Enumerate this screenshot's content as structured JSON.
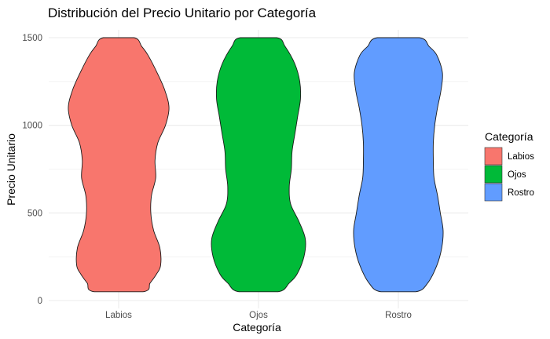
{
  "chart_data": {
    "type": "violin",
    "title": "Distribución del Precio Unitario por Categoría",
    "xlabel": "Categoría",
    "ylabel": "Precio Unitario",
    "categories": [
      "Labios",
      "Ojos",
      "Rostro"
    ],
    "ylim": [
      0,
      1500
    ],
    "yticks": [
      0,
      500,
      1000,
      1500
    ],
    "grid": true,
    "legend": {
      "title": "Categoría",
      "position": "right"
    },
    "series": [
      {
        "name": "Labios",
        "color": "#F8766D",
        "min": 50,
        "max": 1500,
        "profile": [
          [
            50,
            0.35
          ],
          [
            100,
            0.45
          ],
          [
            150,
            0.54
          ],
          [
            200,
            0.6
          ],
          [
            300,
            0.59
          ],
          [
            400,
            0.5
          ],
          [
            500,
            0.46
          ],
          [
            600,
            0.47
          ],
          [
            700,
            0.53
          ],
          [
            800,
            0.52
          ],
          [
            900,
            0.56
          ],
          [
            1000,
            0.67
          ],
          [
            1100,
            0.72
          ],
          [
            1200,
            0.66
          ],
          [
            1300,
            0.55
          ],
          [
            1400,
            0.42
          ],
          [
            1450,
            0.33
          ],
          [
            1500,
            0.22
          ]
        ]
      },
      {
        "name": "Ojos",
        "color": "#00BA38",
        "min": 50,
        "max": 1500,
        "profile": [
          [
            50,
            0.28
          ],
          [
            100,
            0.44
          ],
          [
            150,
            0.55
          ],
          [
            250,
            0.65
          ],
          [
            350,
            0.67
          ],
          [
            450,
            0.58
          ],
          [
            550,
            0.46
          ],
          [
            650,
            0.44
          ],
          [
            750,
            0.47
          ],
          [
            850,
            0.48
          ],
          [
            950,
            0.52
          ],
          [
            1050,
            0.56
          ],
          [
            1150,
            0.6
          ],
          [
            1250,
            0.59
          ],
          [
            1350,
            0.52
          ],
          [
            1450,
            0.38
          ],
          [
            1500,
            0.26
          ]
        ]
      },
      {
        "name": "Rostro",
        "color": "#619CFF",
        "min": 50,
        "max": 1500,
        "profile": [
          [
            50,
            0.25
          ],
          [
            100,
            0.42
          ],
          [
            200,
            0.55
          ],
          [
            300,
            0.62
          ],
          [
            400,
            0.64
          ],
          [
            500,
            0.6
          ],
          [
            600,
            0.56
          ],
          [
            700,
            0.51
          ],
          [
            800,
            0.5
          ],
          [
            900,
            0.5
          ],
          [
            1000,
            0.52
          ],
          [
            1100,
            0.56
          ],
          [
            1200,
            0.61
          ],
          [
            1300,
            0.63
          ],
          [
            1400,
            0.55
          ],
          [
            1450,
            0.44
          ],
          [
            1500,
            0.3
          ]
        ]
      }
    ]
  }
}
